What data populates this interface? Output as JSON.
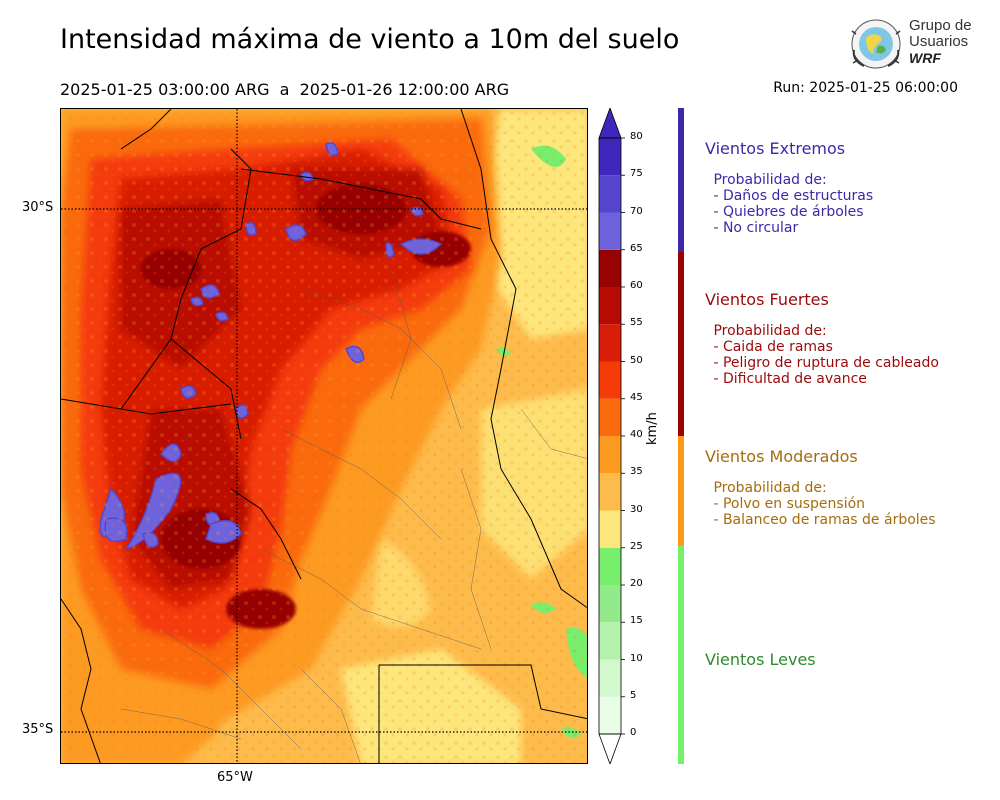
{
  "title": "Intensidad máxima de viento a 10m del suelo",
  "subtitle": "2025-01-25 03:00:00 ARG  a  2025-01-26 12:00:00 ARG",
  "run": "Run: 2025-01-25 06:00:00",
  "logo": {
    "line1": "Grupo de",
    "line2": "Usuarios",
    "line3": "WRF",
    "icon": "globe-emblem-icon"
  },
  "map": {
    "lat_labels": [
      "30°S",
      "35°S"
    ],
    "lon_labels": [
      "65°W"
    ],
    "extent": {
      "lon": [
        -66.6,
        -61.9
      ],
      "lat": [
        -28.1,
        -35.3
      ]
    },
    "gridlines": {
      "lat": [
        -30,
        -35
      ],
      "lon": [
        -65
      ]
    }
  },
  "colorbar": {
    "unit": "km/h",
    "ticks": [
      "0",
      "5",
      "10",
      "15",
      "20",
      "25",
      "30",
      "35",
      "40",
      "45",
      "50",
      "55",
      "60",
      "65",
      "70",
      "75",
      "80"
    ],
    "colors": [
      "#eafde6",
      "#d2f8cd",
      "#b4f1ad",
      "#93ea8b",
      "#77ee6c",
      "#fde67b",
      "#fdbb4b",
      "#fd9a20",
      "#fa6a0e",
      "#f43b08",
      "#d81e06",
      "#b80a04",
      "#970203",
      "#6e63dd",
      "#5545cc",
      "#3e28bb"
    ],
    "extend": "both"
  },
  "categories": [
    {
      "name": "Vientos Extremos",
      "color": "#3b28aa",
      "desc": " Probabilidad de:\n - Daños de estructuras\n - Quiebres de árboles\n - No circular",
      "band_color": "#3b28aa"
    },
    {
      "name": "Vientos Fuertes",
      "color": "#9a0a0a",
      "desc": " Probabilidad de:\n - Caida de ramas\n - Peligro de ruptura de cableado\n - Dificultad de avance",
      "band_color": "#9a0303"
    },
    {
      "name": "Vientos Moderados",
      "color": "#a66c0c",
      "desc": " Probabilidad de:\n - Polvo en suspensión\n - Balanceo de ramas de árboles",
      "band_color": "#fd9b17"
    },
    {
      "name": "Vientos Leves",
      "color": "#2e8a2e",
      "desc": "",
      "band_color": "#76f06a"
    }
  ]
}
